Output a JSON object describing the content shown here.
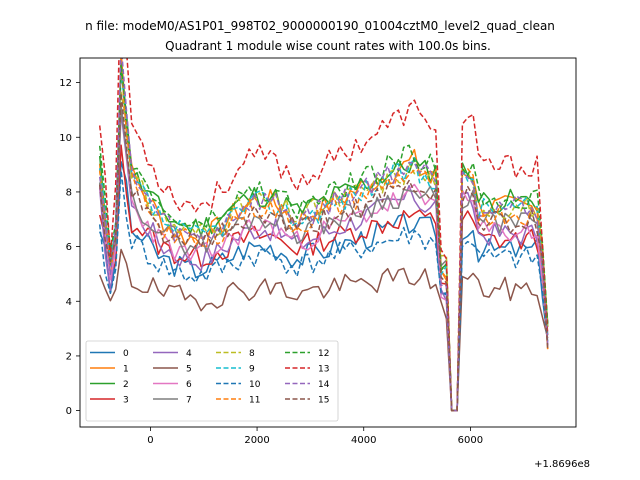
{
  "chart_data": {
    "type": "line",
    "suptitle": "n file: modeM0/AS1P01_998T02_9000000190_01004cztM0_level2_quad_clean",
    "title": "Quadrant 1 module wise count rates with 100.0s bins.",
    "xlabel": "",
    "ylabel": "",
    "x_offset_label": "+1.8696e8",
    "xlim": [
      -1320,
      7980
    ],
    "ylim": [
      -0.6,
      12.9
    ],
    "xticks": [
      0,
      2000,
      4000,
      6000
    ],
    "xtick_labels": [
      "0",
      "2000",
      "4000",
      "6000"
    ],
    "yticks": [
      0,
      2,
      4,
      6,
      8,
      10,
      12
    ],
    "ytick_labels": [
      "0",
      "2",
      "4",
      "6",
      "8",
      "10",
      "12"
    ],
    "grid": false,
    "legend_location": "lower-left",
    "legend_columns": 4,
    "x_range": [
      -950,
      7450
    ],
    "x_step": 100,
    "series": [
      {
        "name": "0",
        "color": "#1f77b4",
        "style": "solid",
        "level": 5.6,
        "shape": 0.95,
        "seed": 3
      },
      {
        "name": "1",
        "color": "#ff7f0e",
        "style": "solid",
        "level": 7.0,
        "shape": 1.25,
        "seed": 7
      },
      {
        "name": "2",
        "color": "#2ca02c",
        "style": "solid",
        "level": 7.3,
        "shape": 1.0,
        "seed": 11
      },
      {
        "name": "3",
        "color": "#d62728",
        "style": "solid",
        "level": 6.0,
        "shape": 0.8,
        "seed": 13
      },
      {
        "name": "4",
        "color": "#9467bd",
        "style": "solid",
        "level": 6.1,
        "shape": 1.2,
        "seed": 17
      },
      {
        "name": "5",
        "color": "#8c564b",
        "style": "solid",
        "level": 4.3,
        "shape": 0.6,
        "seed": 19
      },
      {
        "name": "6",
        "color": "#e377c2",
        "style": "solid",
        "level": 6.2,
        "shape": 1.15,
        "seed": 23
      },
      {
        "name": "7",
        "color": "#7f7f7f",
        "style": "solid",
        "level": 6.6,
        "shape": 0.9,
        "seed": 29
      },
      {
        "name": "8",
        "color": "#bcbd22",
        "style": "dashed",
        "level": 7.1,
        "shape": 1.0,
        "seed": 31
      },
      {
        "name": "9",
        "color": "#17becf",
        "style": "dashed",
        "level": 7.0,
        "shape": 1.1,
        "seed": 37
      },
      {
        "name": "10",
        "color": "#1f77b4",
        "style": "dashed",
        "level": 5.3,
        "shape": 0.9,
        "seed": 41
      },
      {
        "name": "11",
        "color": "#ff7f0e",
        "style": "dashed",
        "level": 6.8,
        "shape": 1.2,
        "seed": 43
      },
      {
        "name": "12",
        "color": "#2ca02c",
        "style": "dashed",
        "level": 7.4,
        "shape": 1.1,
        "seed": 47
      },
      {
        "name": "13",
        "color": "#d62728",
        "style": "dashed",
        "level": 8.4,
        "shape": 1.3,
        "seed": 53
      },
      {
        "name": "14",
        "color": "#9467bd",
        "style": "dashed",
        "level": 7.0,
        "shape": 1.25,
        "seed": 59
      },
      {
        "name": "15",
        "color": "#8c564b",
        "style": "dashed",
        "level": 6.6,
        "shape": 1.0,
        "seed": 61
      }
    ]
  }
}
